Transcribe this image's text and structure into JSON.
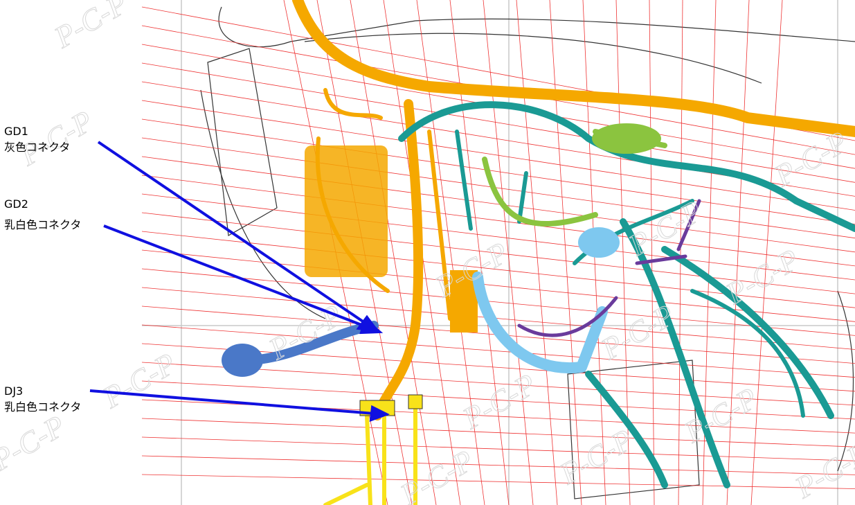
{
  "labels": [
    {
      "code": "GD1",
      "desc": "灰色コネクタ"
    },
    {
      "code": "GD2",
      "desc": "乳白色コネクタ"
    },
    {
      "code": "DJ3",
      "desc": "乳白色コネクタ"
    }
  ],
  "watermark": "P-C-P"
}
